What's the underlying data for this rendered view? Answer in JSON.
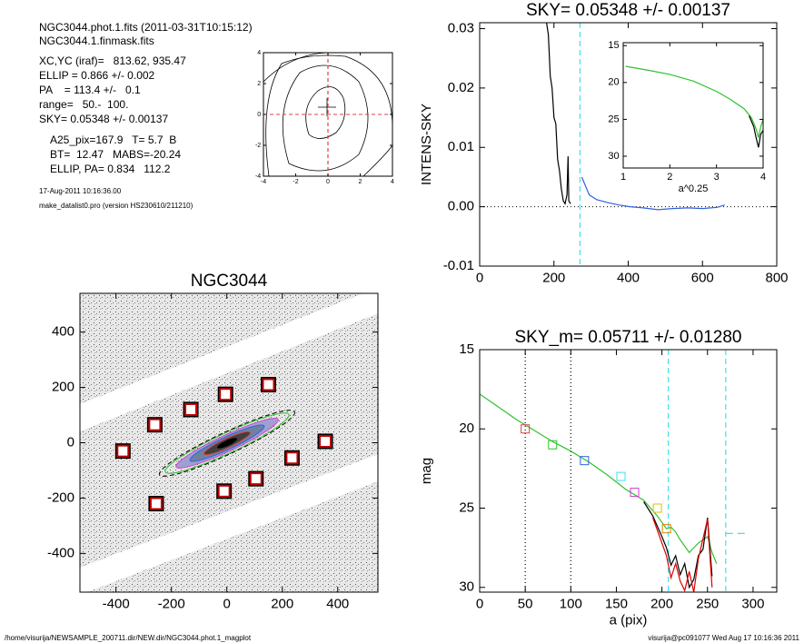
{
  "header": {
    "lines": [
      "NGC3044.phot.1.fits  (2011-03-31T10:15:12)",
      "NGC3044.1.finmask.fits",
      "XC,YC (iraf)=   813.62, 935.47",
      "ELLIP = 0.866 +/- 0.002",
      "PA    = 113.4 +/-   0.1",
      "range=   50.-  100.",
      "SKY= 0.05348 +/- 0.00137",
      "A25_pix=167.9   T= 5.7  B",
      "BT=  12.47   MABS=-20.24",
      "ELLIP, PA= 0.834   112.2"
    ],
    "date": "17-Aug-2011 10:16:36.00",
    "program": "make_datalist0.pro (version HS230610/211210)"
  },
  "footer": {
    "left": "/home/visurija/NEWSAMPLE_200711.dir/NEW.dir/NGC3044.phot.1_magplot",
    "right": "visurija@pc091077  Wed Aug 17 10:16:36 2011"
  },
  "chart_data": [
    {
      "type": "contour",
      "xlim": [
        -4,
        4
      ],
      "ylim": [
        -4,
        4
      ],
      "xticks": [
        -4,
        -2,
        0,
        2,
        4
      ],
      "yticks": [
        -4,
        -2,
        0,
        2,
        4
      ],
      "vlines": [
        {
          "x": 0,
          "color": "#e04040",
          "dash": "4,3"
        }
      ],
      "hlines": [
        {
          "y": 0,
          "color": "#e04040",
          "dash": "4,3"
        }
      ]
    },
    {
      "type": "line",
      "title": "SKY= 0.05348 +/- 0.00137",
      "ylabel": "INTENS-SKY",
      "xlim": [
        0,
        800
      ],
      "ylim": [
        -0.01,
        0.031
      ],
      "xticks": [
        0,
        200,
        400,
        600,
        800
      ],
      "yticks": [
        -0.01,
        {
          "value": 0,
          "label": "0.00"
        },
        0.01,
        0.02,
        0.03
      ],
      "series": [
        {
          "color": "#000000",
          "x": [
            180,
            185,
            190,
            195,
            200,
            205,
            210,
            215,
            220,
            225,
            230,
            235,
            238,
            240,
            245
          ],
          "values": [
            0.031,
            0.029,
            0.022,
            0.02,
            0.015,
            0.014,
            0.008,
            0.006,
            0.003,
            0.001,
            0.0005,
            0.002,
            0.0085,
            0.001,
            0.0005
          ]
        },
        {
          "color": "#3060e0",
          "x": [
            275,
            295,
            315,
            345,
            375,
            405,
            440,
            480,
            520,
            560,
            600,
            640,
            660
          ],
          "values": [
            0.005,
            0.002,
            0.0012,
            0.0007,
            0.0003,
            0,
            -0.0002,
            -0.0005,
            -0.0003,
            -0.0002,
            -0.0003,
            -0.0001,
            0.0003
          ]
        }
      ],
      "vlines": [
        {
          "x": 270,
          "color": "#40e0f0",
          "dash": "6,4"
        }
      ],
      "hlines": [
        {
          "y": 0,
          "color": "#000000",
          "dash": "1,3"
        }
      ]
    },
    {
      "type": "line",
      "xlabel": "a^0.25",
      "xlim": [
        1,
        4
      ],
      "ylim": [
        31.6,
        14.6
      ],
      "xticks": [
        1,
        2,
        3,
        4
      ],
      "yticks": [
        15,
        20,
        25,
        30
      ],
      "series": [
        {
          "color": "#30c030",
          "x": [
            1.05,
            1.5,
            2,
            2.5,
            3,
            3.3,
            3.6,
            3.75,
            3.85,
            3.9,
            3.95,
            4
          ],
          "values": [
            17.8,
            18.3,
            18.9,
            19.8,
            21.2,
            22.3,
            23.6,
            24.8,
            26.3,
            27.5,
            26,
            25
          ]
        },
        {
          "color": "#000000",
          "x": [
            3.7,
            3.8,
            3.85,
            3.9,
            3.95,
            4
          ],
          "values": [
            24.5,
            26,
            27.5,
            28.8,
            27,
            26.5
          ]
        }
      ]
    },
    {
      "type": "image",
      "title": "NGC3044",
      "xlim": [
        -530,
        545
      ],
      "ylim": [
        -540,
        540
      ],
      "xticks": [
        -400,
        -200,
        0,
        200,
        400
      ],
      "yticks": [
        -400,
        -200,
        0,
        200,
        400
      ],
      "markers": {
        "x": [
          -375,
          -260,
          -130,
          -5,
          150,
          355,
          235,
          105,
          -10,
          -255
        ],
        "y": [
          -30,
          65,
          120,
          175,
          210,
          5,
          -55,
          -130,
          -175,
          -220
        ],
        "colors": [
          "#c00000",
          "#c00000",
          "#c00000",
          "#c00000",
          "#c00000",
          "#c00000",
          "#c00000",
          "#c00000",
          "#c00000",
          "#c00000"
        ]
      }
    },
    {
      "type": "line",
      "title": "SKY_m=  0.05711 +/- 0.01280",
      "xlabel": "a (pix)",
      "ylabel": "mag",
      "xlim": [
        0,
        326
      ],
      "ylim": [
        30.3,
        15
      ],
      "xticks": [
        0,
        50,
        100,
        150,
        200,
        250,
        300
      ],
      "yticks": [
        15,
        20,
        25,
        30
      ],
      "series": [
        {
          "color": "#30c030",
          "x": [
            0,
            20,
            40,
            60,
            80,
            100,
            120,
            140,
            160,
            180,
            195,
            205,
            210,
            215,
            220,
            230,
            240,
            250,
            255,
            260
          ],
          "values": [
            17.8,
            18.6,
            19.4,
            20.1,
            20.8,
            21.4,
            22.1,
            22.9,
            23.8,
            24.5,
            25.5,
            26.3,
            26.2,
            26.5,
            27,
            27.8,
            27.2,
            26.8,
            27.8,
            28.5
          ]
        },
        {
          "color": "#000000",
          "x": [
            180,
            190,
            200,
            205,
            210,
            215,
            220,
            225,
            230,
            235,
            240,
            245,
            250,
            255
          ],
          "values": [
            24.6,
            25.5,
            26.8,
            27.5,
            28.6,
            28,
            29.2,
            28.5,
            30,
            29.5,
            28,
            27.6,
            25.6,
            29.3
          ]
        },
        {
          "color": "#e00000",
          "x": [
            190,
            200,
            205,
            210,
            215,
            220,
            225,
            230,
            235,
            240,
            250,
            255
          ],
          "values": [
            25.6,
            27.2,
            28,
            29.4,
            28.5,
            29.6,
            30.2,
            29,
            30.3,
            28.2,
            25.7,
            30
          ]
        },
        {
          "color": "#40e0f0",
          "dash": "8,5",
          "x": [
            270,
            295
          ],
          "values": [
            26.6,
            26.6
          ]
        }
      ],
      "markers": {
        "x": [
          50,
          80,
          115,
          155,
          170,
          195,
          205
        ],
        "y": [
          20,
          21,
          22,
          23,
          24,
          25,
          26.3
        ],
        "colors": [
          "#e04040",
          "#30c030",
          "#3060e0",
          "#40e0f0",
          "#d040d0",
          "#e0c000",
          "#e08000"
        ]
      },
      "vlines": [
        {
          "x": 50,
          "color": "#000000",
          "dash": "1,3"
        },
        {
          "x": 100,
          "color": "#000000",
          "dash": "1,3"
        },
        {
          "x": 207,
          "color": "#40e0f0",
          "dash": "6,4"
        },
        {
          "x": 270,
          "color": "#40e0f0",
          "dash": "6,4"
        }
      ]
    }
  ]
}
